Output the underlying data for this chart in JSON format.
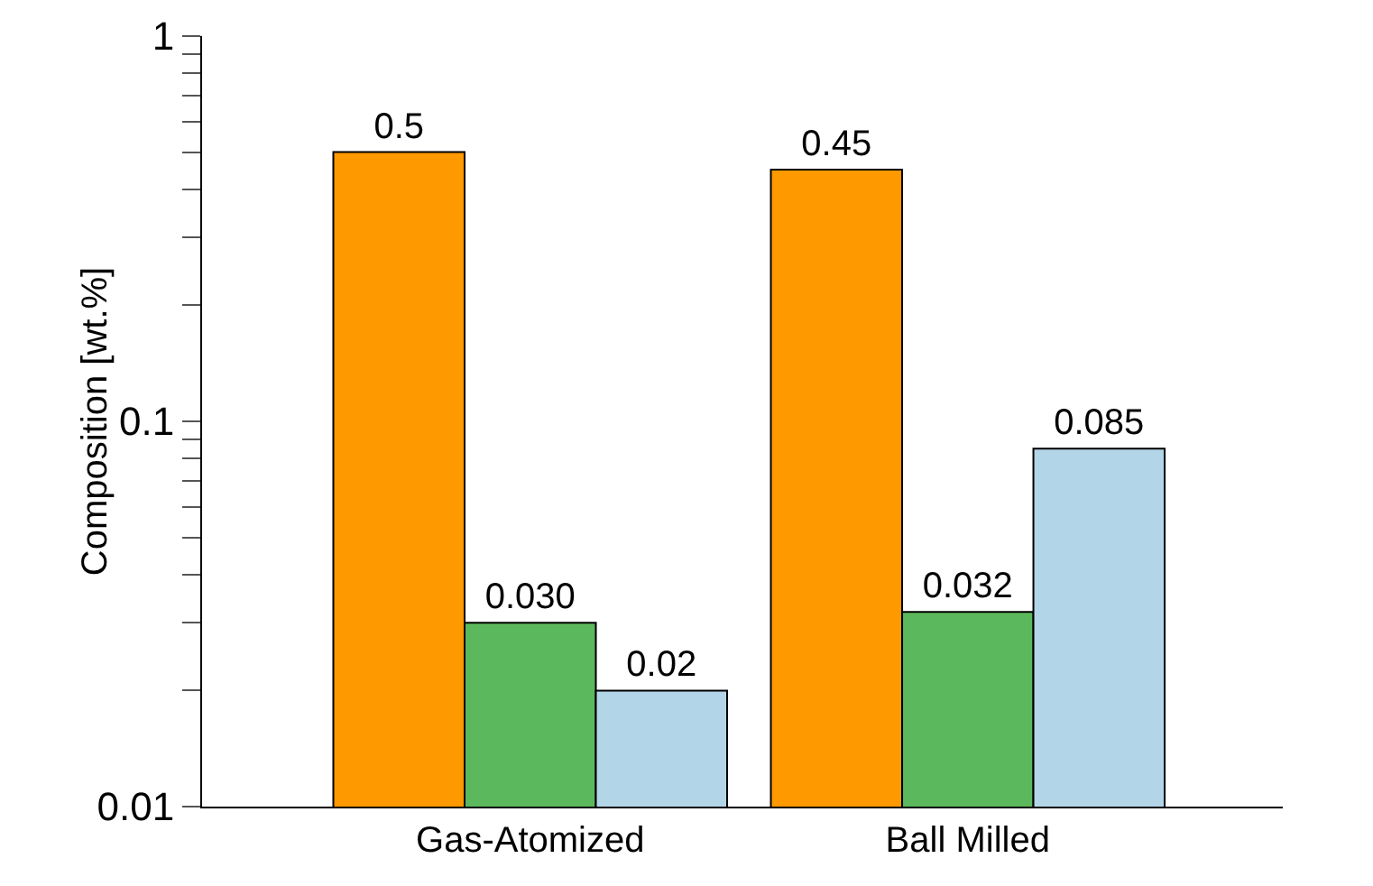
{
  "chart_data": {
    "type": "bar",
    "ylabel": "Composition [wt.%]",
    "categories": [
      "Gas-Atomized",
      "Ball Milled"
    ],
    "series": [
      {
        "color": "#ff9900",
        "values": [
          0.5,
          0.45
        ],
        "value_labels": [
          "0.5",
          "0.45"
        ]
      },
      {
        "color": "#5cb85c",
        "values": [
          0.03,
          0.032
        ],
        "value_labels": [
          "0.030",
          "0.032"
        ]
      },
      {
        "color": "#b3d5e8",
        "values": [
          0.02,
          0.085
        ],
        "value_labels": [
          "0.02",
          "0.085"
        ]
      }
    ],
    "log": "y",
    "ylim": [
      0.01,
      1
    ],
    "yticks": [
      0.01,
      {
        "value": 0.02,
        "label": null
      },
      {
        "value": 0.03,
        "label": null
      },
      {
        "value": 0.04,
        "label": null
      },
      {
        "value": 0.05,
        "label": null
      },
      {
        "value": 0.06,
        "label": null
      },
      {
        "value": 0.07,
        "label": null
      },
      {
        "value": 0.08,
        "label": null
      },
      {
        "value": 0.09,
        "label": null
      },
      0.1,
      {
        "value": 0.2,
        "label": null
      },
      {
        "value": 0.3,
        "label": null
      },
      {
        "value": 0.4,
        "label": null
      },
      {
        "value": 0.5,
        "label": null
      },
      {
        "value": 0.6,
        "label": null
      },
      {
        "value": 0.7,
        "label": null
      },
      {
        "value": 0.8,
        "label": null
      },
      {
        "value": 0.9,
        "label": null
      },
      1
    ],
    "grid": false
  }
}
